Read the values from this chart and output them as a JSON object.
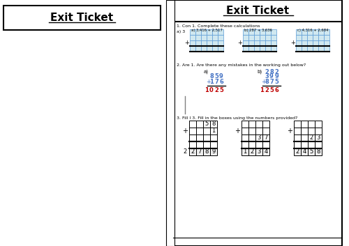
{
  "title": "Exit Ticket",
  "bg_color": "#ffffff",
  "border_color": "#000000",
  "light_blue": "#d0e8f0",
  "blue_text": "#4472c4",
  "red_text": "#c00000",
  "gray_line": "#888888",
  "q1_label": "1. Con 1. Complete these calculations",
  "q2_label": "2. Are 1. Are there any mistakes in the working out below?",
  "q3_label": "3. Fill I 3. Fill in the boxes using the numbers provided?",
  "calc_a_line1": [
    "8",
    "5",
    "9"
  ],
  "calc_a_line2": [
    "1",
    "7",
    "6"
  ],
  "calc_a_result": [
    "1",
    "0",
    "2",
    "5"
  ],
  "calc_b_line1": [
    "2",
    "8",
    "2"
  ],
  "calc_b_line2": [
    "3",
    "9",
    "9"
  ],
  "calc_b_line3": [
    "8",
    "7",
    "5"
  ],
  "calc_b_result": [
    "1",
    "2",
    "5",
    "6"
  ],
  "box3_nums_a": [
    "2",
    "7",
    "8",
    "9"
  ],
  "box3_nums_b": [
    "1",
    "2",
    "3",
    "4"
  ],
  "box3_nums_c": [
    "2",
    "4",
    "5",
    "8"
  ]
}
